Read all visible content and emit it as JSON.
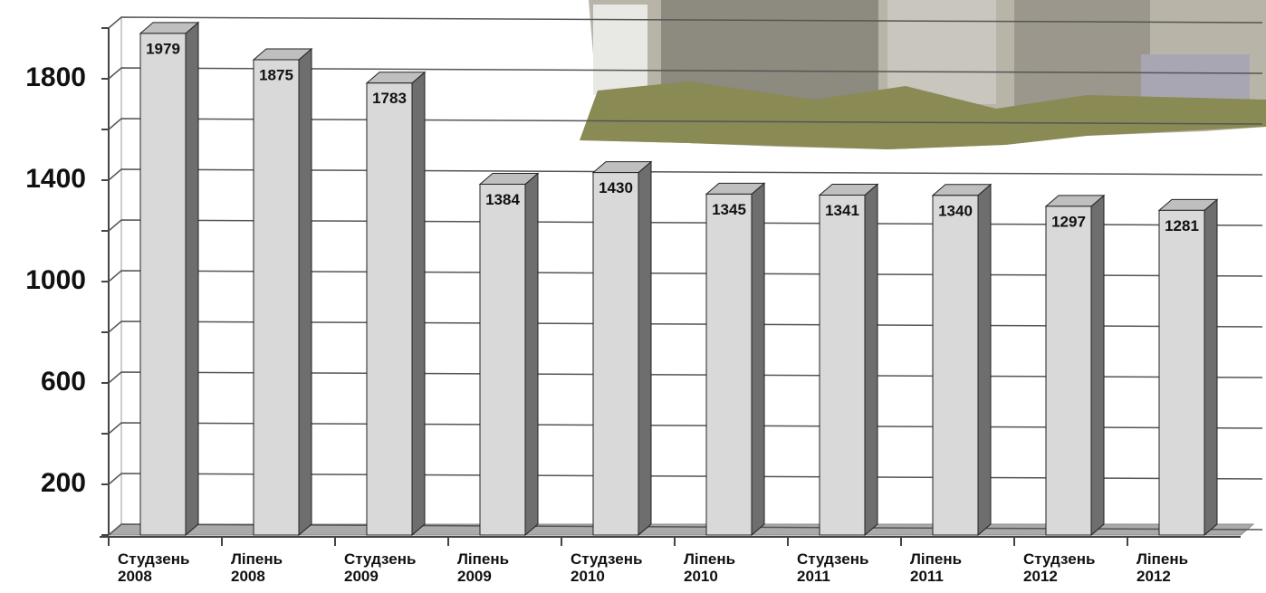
{
  "chart_data": {
    "type": "bar3d",
    "categories": [
      [
        "Студзень",
        "2008"
      ],
      [
        "Ліпень",
        "2008"
      ],
      [
        "Студзень",
        "2009"
      ],
      [
        "Ліпень",
        "2009"
      ],
      [
        "Студзень",
        "2010"
      ],
      [
        "Ліпень",
        "2010"
      ],
      [
        "Студзень",
        "2011"
      ],
      [
        "Ліпень",
        "2011"
      ],
      [
        "Студзень",
        "2012"
      ],
      [
        "Ліпень",
        "2012"
      ]
    ],
    "values": [
      1979,
      1875,
      1783,
      1384,
      1430,
      1345,
      1341,
      1340,
      1297,
      1281
    ],
    "color": "#d9d9d9",
    "ylim": [
      0,
      2000
    ],
    "yticks": [
      200,
      600,
      1000,
      1400,
      1800
    ],
    "minor_yticks": [
      0,
      400,
      800,
      1200,
      1600,
      2000
    ],
    "grid": true
  }
}
